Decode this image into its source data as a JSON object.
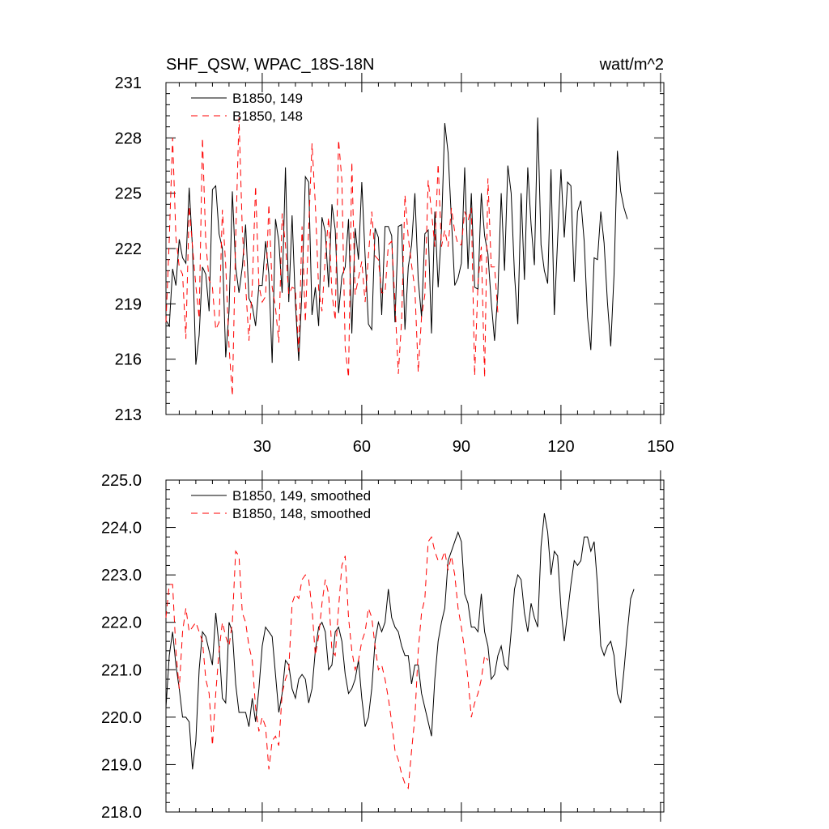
{
  "chart_data": [
    {
      "type": "line",
      "title_left": "SHF_QSW, WPAC_18S-18N",
      "title_right": "watt/m^2",
      "xlim": [
        1,
        151
      ],
      "ylim": [
        213,
        231
      ],
      "xticks": [
        30,
        60,
        90,
        120,
        150
      ],
      "yticks": [
        213,
        216,
        219,
        222,
        225,
        228,
        231
      ],
      "ytick_labels": [
        "213",
        "216",
        "219",
        "222",
        "225",
        "228",
        "231"
      ],
      "legend": [
        "B1850, 149",
        "B1850, 148"
      ],
      "series": [
        {
          "name": "B1850, 149",
          "color": "#000000",
          "dash": "",
          "values": [
            218.1,
            217.8,
            220.9,
            220.0,
            222.5,
            221.5,
            221.2,
            225.3,
            222.0,
            215.7,
            217.3,
            221.0,
            220.6,
            218.6,
            225.2,
            225.4,
            222.8,
            222.0,
            216.1,
            218.6,
            225.1,
            221.0,
            219.6,
            221.0,
            223.3,
            219.3,
            218.9,
            217.8,
            220.0,
            220.0,
            222.4,
            220.6,
            215.8,
            223.6,
            222.4,
            219.6,
            226.4,
            219.1,
            223.8,
            219.0,
            215.9,
            219.8,
            225.9,
            225.6,
            218.4,
            219.9,
            217.8,
            223.7,
            222.9,
            219.9,
            224.4,
            223.0,
            218.5,
            220.5,
            221.0,
            223.6,
            217.4,
            223.1,
            221.4,
            225.6,
            221.6,
            217.9,
            217.6,
            223.1,
            222.6,
            218.4,
            223.2,
            223.2,
            222.7,
            218.0,
            223.2,
            223.3,
            217.6,
            221.0,
            222.2,
            225.0,
            220.3,
            218.3,
            222.8,
            223.0,
            217.4,
            224.0,
            219.9,
            223.0,
            228.8,
            227.2,
            223.6,
            220.0,
            220.4,
            221.2,
            226.4,
            220.9,
            225.0,
            219.9,
            219.8,
            225.0,
            222.7,
            221.7,
            219.1,
            217.0,
            219.6,
            225.0,
            220.8,
            226.5,
            225.0,
            220.6,
            217.9,
            225.0,
            220.3,
            226.4,
            223.3,
            221.1,
            229.1,
            222.2,
            220.8,
            220.1,
            226.3,
            218.4,
            222.5,
            226.3,
            222.6,
            225.6,
            225.4,
            220.2,
            224.0,
            224.6,
            222.4,
            218.3,
            216.5,
            221.5,
            221.4,
            224.0,
            222.3,
            219.1,
            216.7,
            220.6,
            227.3,
            225.1,
            224.2,
            223.6
          ]
        },
        {
          "name": "B1850, 148",
          "color": "#ff0000",
          "dash": "8,6",
          "values": [
            218.0,
            222.5,
            228.0,
            222.6,
            221.0,
            220.6,
            217.1,
            224.3,
            222.1,
            220.0,
            218.2,
            228.0,
            222.3,
            220.3,
            219.9,
            217.6,
            218.0,
            224.1,
            221.1,
            216.7,
            214.0,
            222.5,
            229.1,
            223.0,
            220.0,
            217.0,
            219.9,
            225.4,
            220.0,
            219.1,
            219.4,
            224.4,
            219.9,
            218.8,
            216.9,
            223.9,
            222.2,
            219.5,
            219.9,
            219.8,
            216.4,
            223.2,
            218.0,
            223.1,
            227.7,
            224.4,
            219.8,
            218.6,
            221.5,
            223.7,
            219.6,
            218.1,
            227.9,
            225.7,
            216.6,
            215.0,
            226.7,
            219.5,
            220.4,
            221.3,
            219.1,
            221.6,
            224.0,
            221.6,
            221.4,
            219.6,
            219.6,
            222.2,
            222.4,
            219.1,
            215.2,
            218.1,
            224.9,
            222.6,
            221.1,
            219.8,
            215.3,
            218.3,
            219.5,
            225.7,
            224.0,
            222.1,
            226.6,
            222.1,
            223.0,
            222.1,
            224.2,
            222.9,
            222.2,
            222.2,
            224.0,
            223.5,
            224.2,
            215.1,
            220.1,
            222.1,
            215.0,
            225.8,
            221.0,
            221.0,
            218.5
          ]
        }
      ]
    },
    {
      "type": "line",
      "xlim": [
        1,
        151
      ],
      "ylim": [
        218.0,
        225.0
      ],
      "xticks": [
        30,
        60,
        90,
        120,
        150
      ],
      "yticks": [
        218,
        219,
        220,
        221,
        222,
        223,
        224,
        225
      ],
      "ytick_labels": [
        "218.0",
        "219.0",
        "220.0",
        "221.0",
        "222.0",
        "223.0",
        "224.0",
        "225.0"
      ],
      "legend": [
        "B1850, 149, smoothed",
        "B1850, 148, smoothed"
      ],
      "series": [
        {
          "name": "B1850, 149, smoothed",
          "color": "#000000",
          "dash": "",
          "values": [
            220.2,
            221.3,
            221.8,
            221.1,
            220.6,
            220.0,
            220.0,
            219.9,
            218.9,
            219.5,
            221.0,
            221.8,
            221.7,
            221.4,
            221.1,
            222.2,
            221.5,
            220.4,
            220.3,
            222.0,
            221.8,
            220.7,
            220.1,
            220.1,
            220.1,
            219.8,
            220.4,
            219.9,
            220.6,
            221.5,
            221.9,
            221.8,
            221.7,
            220.9,
            220.1,
            220.5,
            221.2,
            221.1,
            220.6,
            220.4,
            220.8,
            220.9,
            220.8,
            220.3,
            220.6,
            221.4,
            221.9,
            222.0,
            221.8,
            221.0,
            221.1,
            221.8,
            221.9,
            221.6,
            220.9,
            220.5,
            220.6,
            220.8,
            221.2,
            220.4,
            219.8,
            220.0,
            220.6,
            221.6,
            222.0,
            221.8,
            222.0,
            222.7,
            222.1,
            221.9,
            221.8,
            221.5,
            221.3,
            221.3,
            220.7,
            221.1,
            221.1,
            220.5,
            220.2,
            219.9,
            219.6,
            220.8,
            221.6,
            222.0,
            222.3,
            223.3,
            223.5,
            223.7,
            223.9,
            223.7,
            222.6,
            222.4,
            221.9,
            221.9,
            221.8,
            222.6,
            221.8,
            221.5,
            220.8,
            220.9,
            221.3,
            221.5,
            221.1,
            221.0,
            221.8,
            222.7,
            223.0,
            222.9,
            222.2,
            221.8,
            222.4,
            222.1,
            221.9,
            223.6,
            224.3,
            223.9,
            223.0,
            223.5,
            223.4,
            222.3,
            221.6,
            222.2,
            222.8,
            223.3,
            223.2,
            223.3,
            223.8,
            223.8,
            223.5,
            223.7,
            222.8,
            221.5,
            221.3,
            221.5,
            221.6,
            221.3,
            220.5,
            220.3,
            221.0,
            221.8,
            222.5,
            222.7
          ]
        },
        {
          "name": "B1850, 148, smoothed",
          "color": "#ff0000",
          "dash": "8,6",
          "values": [
            222.1,
            222.8,
            222.8,
            221.4,
            220.6,
            221.8,
            222.3,
            221.8,
            221.9,
            222.0,
            221.8,
            221.6,
            220.8,
            220.5,
            219.4,
            220.5,
            221.4,
            222.0,
            221.7,
            221.5,
            222.0,
            223.5,
            223.4,
            222.2,
            222.0,
            221.5,
            221.2,
            220.2,
            219.7,
            220.0,
            219.8,
            218.9,
            219.5,
            219.6,
            219.4,
            220.5,
            220.8,
            221.0,
            222.4,
            222.6,
            222.5,
            222.9,
            223.0,
            222.9,
            222.3,
            221.3,
            221.7,
            222.4,
            222.9,
            222.6,
            221.4,
            221.3,
            222.3,
            223.2,
            223.4,
            222.1,
            221.4,
            221.0,
            221.2,
            221.6,
            221.8,
            222.3,
            222.1,
            221.5,
            221.0,
            221.1,
            220.8,
            220.4,
            219.9,
            219.3,
            219.1,
            218.8,
            218.6,
            218.5,
            219.3,
            220.0,
            221.4,
            222.2,
            222.5,
            223.7,
            223.8,
            223.5,
            223.3,
            223.3,
            223.5,
            223.1,
            223.4,
            223.0,
            222.3,
            221.9,
            221.4,
            220.8,
            220.0,
            220.3,
            220.5,
            220.8,
            221.3,
            221.2
          ]
        }
      ]
    }
  ]
}
